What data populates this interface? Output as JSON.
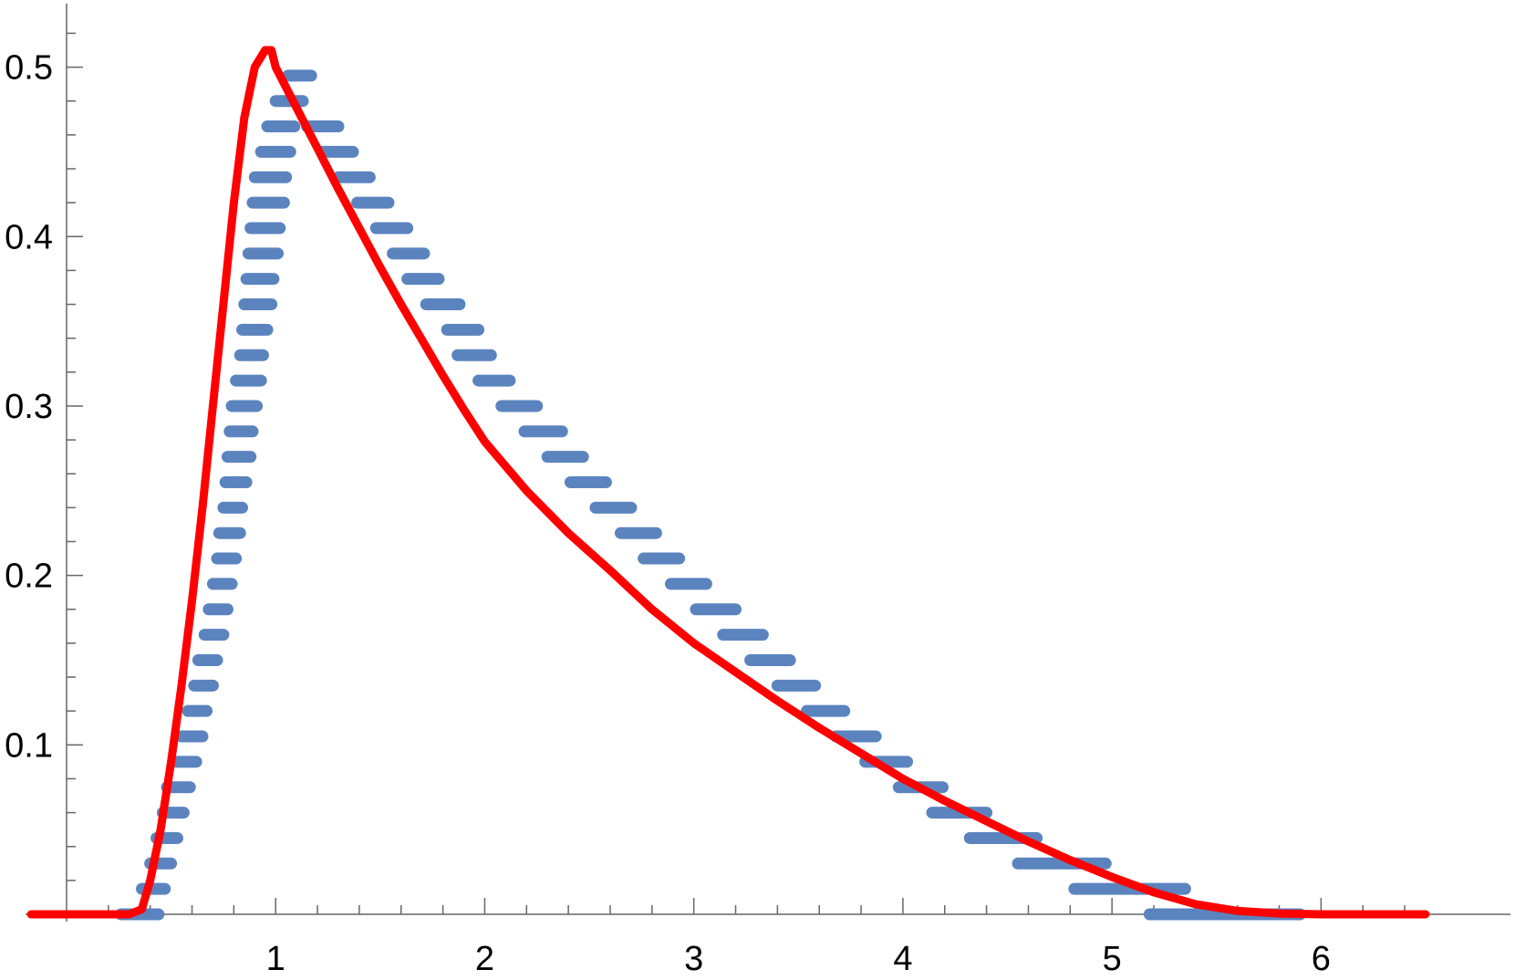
{
  "chart_data": {
    "type": "scatter",
    "xlim": [
      -0.17,
      6.5
    ],
    "ylim": [
      0,
      0.51
    ],
    "x_ticks": [
      1,
      2,
      3,
      4,
      5,
      6
    ],
    "x_tick_labels": [
      "1",
      "2",
      "3",
      "4",
      "5",
      "6"
    ],
    "y_ticks": [
      0.1,
      0.2,
      0.3,
      0.4,
      0.5
    ],
    "y_tick_labels": [
      "0.1",
      "0.2",
      "0.3",
      "0.4",
      "0.5"
    ],
    "grid": false,
    "colors": {
      "steps": "#5b84bf",
      "curve": "#ff0000",
      "axis": "#666666"
    },
    "series": [
      {
        "kind": "step-segments",
        "segments": [
          [
            0.26,
            0.44,
            0.0
          ],
          [
            0.36,
            0.47,
            0.015
          ],
          [
            0.4,
            0.5,
            0.03
          ],
          [
            0.43,
            0.53,
            0.045
          ],
          [
            0.46,
            0.56,
            0.06
          ],
          [
            0.48,
            0.59,
            0.075
          ],
          [
            0.52,
            0.62,
            0.09
          ],
          [
            0.55,
            0.65,
            0.105
          ],
          [
            0.58,
            0.67,
            0.12
          ],
          [
            0.61,
            0.7,
            0.135
          ],
          [
            0.63,
            0.72,
            0.15
          ],
          [
            0.66,
            0.75,
            0.165
          ],
          [
            0.68,
            0.77,
            0.18
          ],
          [
            0.7,
            0.79,
            0.195
          ],
          [
            0.72,
            0.81,
            0.21
          ],
          [
            0.73,
            0.83,
            0.225
          ],
          [
            0.75,
            0.84,
            0.24
          ],
          [
            0.76,
            0.86,
            0.255
          ],
          [
            0.77,
            0.88,
            0.27
          ],
          [
            0.78,
            0.89,
            0.285
          ],
          [
            0.79,
            0.91,
            0.3
          ],
          [
            0.81,
            0.93,
            0.315
          ],
          [
            0.83,
            0.94,
            0.33
          ],
          [
            0.84,
            0.96,
            0.345
          ],
          [
            0.85,
            0.98,
            0.36
          ],
          [
            0.86,
            0.99,
            0.375
          ],
          [
            0.87,
            1.01,
            0.39
          ],
          [
            0.88,
            1.02,
            0.405
          ],
          [
            0.89,
            1.04,
            0.42
          ],
          [
            0.9,
            1.05,
            0.435
          ],
          [
            0.93,
            1.07,
            0.45
          ],
          [
            0.96,
            1.09,
            0.465
          ],
          [
            1.0,
            1.13,
            0.48
          ],
          [
            1.06,
            1.17,
            0.495
          ],
          [
            1.15,
            1.3,
            0.465
          ],
          [
            1.22,
            1.37,
            0.45
          ],
          [
            1.3,
            1.45,
            0.435
          ],
          [
            1.39,
            1.54,
            0.42
          ],
          [
            1.48,
            1.63,
            0.405
          ],
          [
            1.56,
            1.71,
            0.39
          ],
          [
            1.63,
            1.78,
            0.375
          ],
          [
            1.72,
            1.88,
            0.36
          ],
          [
            1.82,
            1.97,
            0.345
          ],
          [
            1.87,
            2.03,
            0.33
          ],
          [
            1.97,
            2.12,
            0.315
          ],
          [
            2.08,
            2.25,
            0.3
          ],
          [
            2.19,
            2.37,
            0.285
          ],
          [
            2.3,
            2.47,
            0.27
          ],
          [
            2.41,
            2.58,
            0.255
          ],
          [
            2.53,
            2.7,
            0.24
          ],
          [
            2.65,
            2.82,
            0.225
          ],
          [
            2.76,
            2.93,
            0.21
          ],
          [
            2.89,
            3.06,
            0.195
          ],
          [
            3.01,
            3.2,
            0.18
          ],
          [
            3.14,
            3.33,
            0.165
          ],
          [
            3.27,
            3.46,
            0.15
          ],
          [
            3.4,
            3.58,
            0.135
          ],
          [
            3.54,
            3.72,
            0.12
          ],
          [
            3.68,
            3.87,
            0.105
          ],
          [
            3.82,
            4.02,
            0.09
          ],
          [
            3.98,
            4.19,
            0.075
          ],
          [
            4.14,
            4.4,
            0.06
          ],
          [
            4.32,
            4.64,
            0.045
          ],
          [
            4.55,
            4.97,
            0.03
          ],
          [
            4.82,
            5.35,
            0.015
          ],
          [
            5.18,
            5.9,
            0.0
          ]
        ]
      },
      {
        "kind": "curve",
        "x": [
          -0.17,
          0.3,
          0.36,
          0.4,
          0.45,
          0.5,
          0.55,
          0.6,
          0.65,
          0.7,
          0.75,
          0.8,
          0.85,
          0.9,
          0.95,
          0.98,
          1.0,
          1.05,
          1.1,
          1.2,
          1.3,
          1.4,
          1.5,
          1.6,
          1.7,
          1.8,
          1.9,
          2.0,
          2.2,
          2.4,
          2.6,
          2.8,
          3.0,
          3.2,
          3.4,
          3.6,
          3.8,
          4.0,
          4.2,
          4.4,
          4.6,
          4.8,
          5.0,
          5.2,
          5.4,
          5.6,
          5.8,
          6.0,
          6.5
        ],
        "y": [
          0,
          0,
          0.003,
          0.02,
          0.05,
          0.09,
          0.135,
          0.185,
          0.24,
          0.3,
          0.36,
          0.42,
          0.47,
          0.5,
          0.51,
          0.51,
          0.5,
          0.488,
          0.476,
          0.452,
          0.428,
          0.405,
          0.382,
          0.36,
          0.339,
          0.318,
          0.298,
          0.279,
          0.25,
          0.225,
          0.203,
          0.18,
          0.16,
          0.143,
          0.126,
          0.11,
          0.095,
          0.08,
          0.067,
          0.055,
          0.043,
          0.032,
          0.022,
          0.013,
          0.006,
          0.002,
          0.0005,
          0,
          0
        ]
      }
    ]
  }
}
